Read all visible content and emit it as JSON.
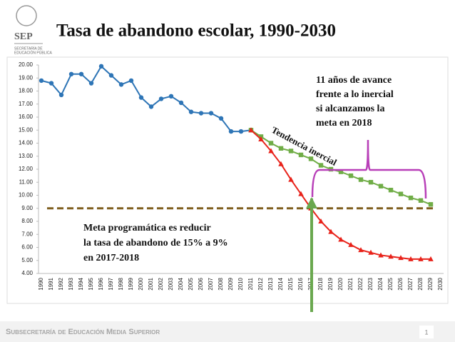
{
  "logo": {
    "name": "SEP",
    "subtitle": [
      "SECRETARÍA DE",
      "EDUCACIÓN PÚBLICA"
    ]
  },
  "footer": {
    "text": "Subsecretaría de Educación Media Superior",
    "page": "1"
  },
  "chart_data": {
    "type": "line",
    "title": "Tasa de abandono escolar, 1990-2030",
    "categories": [
      "1990",
      "1991",
      "1992",
      "1993",
      "1994",
      "1995",
      "1996",
      "1997",
      "1998",
      "1999",
      "2000",
      "2001",
      "2002",
      "2003",
      "2004",
      "2005",
      "2006",
      "2007",
      "2008",
      "2009",
      "2010",
      "2011",
      "2012",
      "2013",
      "2014",
      "2015",
      "2016",
      "2017",
      "2018",
      "2019",
      "2020",
      "2021",
      "2022",
      "2023",
      "2024",
      "2025",
      "2026",
      "2027",
      "2028",
      "2029",
      "2030"
    ],
    "series": [
      {
        "color": "#2e75b6",
        "marker": "circle",
        "values": [
          18.8,
          18.6,
          17.7,
          19.3,
          19.3,
          18.6,
          19.9,
          19.2,
          18.5,
          18.8,
          17.5,
          16.8,
          17.4,
          17.6,
          17.1,
          16.4,
          16.3,
          16.3,
          15.9,
          14.9,
          14.9,
          15.0,
          null,
          null,
          null,
          null,
          null,
          null,
          null,
          null,
          null,
          null,
          null,
          null,
          null,
          null,
          null,
          null,
          null,
          null,
          null
        ]
      },
      {
        "color": "#70ad47",
        "marker": "square",
        "values": [
          null,
          null,
          null,
          null,
          null,
          null,
          null,
          null,
          null,
          null,
          null,
          null,
          null,
          null,
          null,
          null,
          null,
          null,
          null,
          null,
          null,
          15.0,
          14.5,
          14.0,
          13.6,
          13.4,
          13.1,
          12.8,
          12.3,
          12.0,
          11.8,
          11.5,
          11.2,
          11.0,
          10.7,
          10.4,
          10.1,
          9.8,
          9.6,
          9.3,
          null
        ]
      },
      {
        "color": "#e8231b",
        "marker": "triangle",
        "values": [
          null,
          null,
          null,
          null,
          null,
          null,
          null,
          null,
          null,
          null,
          null,
          null,
          null,
          null,
          null,
          null,
          null,
          null,
          null,
          null,
          null,
          15.0,
          14.3,
          13.4,
          12.4,
          11.2,
          10.1,
          9.0,
          8.0,
          7.2,
          6.6,
          6.2,
          5.8,
          5.6,
          5.4,
          5.3,
          5.2,
          5.1,
          5.1,
          5.1,
          null
        ]
      }
    ],
    "target": {
      "value": 9,
      "color": "#7f5f1f"
    },
    "ylim": [
      4,
      20
    ],
    "yticks": [
      {
        "value": 4,
        "label": "4.00"
      },
      {
        "value": 5,
        "label": "5.00"
      },
      {
        "value": 6,
        "label": "6.00"
      },
      {
        "value": 7,
        "label": "7.00"
      },
      {
        "value": 8,
        "label": "8.00"
      },
      {
        "value": 9,
        "label": "9.00"
      },
      {
        "value": 10,
        "label": "10.00"
      },
      {
        "value": 11,
        "label": "11.00"
      },
      {
        "value": 12,
        "label": "12.00"
      },
      {
        "value": 13,
        "label": "13.00"
      },
      {
        "value": 14,
        "label": "14.00"
      },
      {
        "value": 15,
        "label": "15.00"
      },
      {
        "value": 16,
        "label": "16.00"
      },
      {
        "value": 17,
        "label": "17.00"
      },
      {
        "value": 18,
        "label": "18.00"
      },
      {
        "value": 19,
        "label": "19.00"
      },
      {
        "value": 20,
        "label": "20.00"
      }
    ],
    "grid": false,
    "annotations": {
      "advance": [
        "11 años de avance",
        "frente a lo inercial",
        "si alcanzamos la",
        "meta en 2018"
      ],
      "trend": "Tendencia inercial",
      "goal": [
        "Meta programática es reducir",
        "la tasa de abandono de 15% a 9%",
        "en 2017-2018"
      ]
    }
  }
}
